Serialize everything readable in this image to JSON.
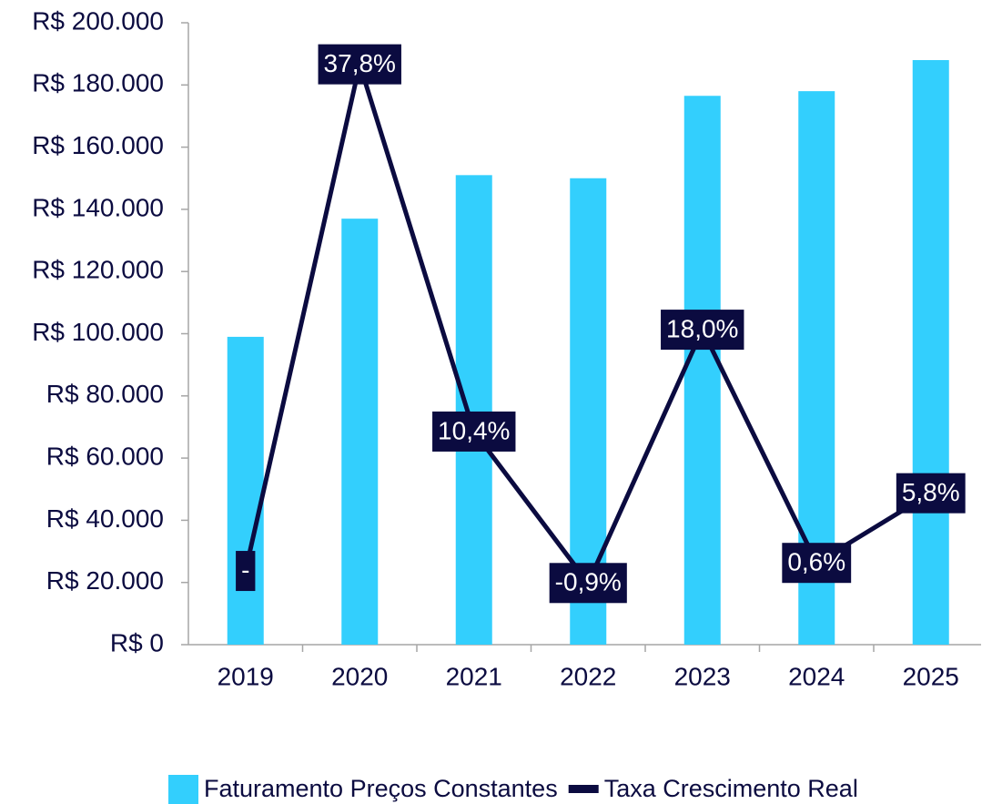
{
  "chart_data": {
    "type": "bar",
    "categories": [
      "2019",
      "2020",
      "2021",
      "2022",
      "2023",
      "2024",
      "2025"
    ],
    "series": [
      {
        "name": "Faturamento Preços Constantes",
        "type": "bar",
        "color": "#33cffd",
        "values": [
          99000,
          137000,
          151000,
          150000,
          176500,
          178000,
          188000
        ]
      },
      {
        "name": "Taxa Crescimento Real",
        "type": "line",
        "axis": "y2",
        "color": "#0b0b40",
        "values": [
          0,
          37.8,
          10.4,
          -0.9,
          18.0,
          0.6,
          5.8
        ],
        "value_labels": [
          "-",
          "37,8%",
          "10,4%",
          "-0,9%",
          "18,0%",
          "0,6%",
          "5,8%"
        ]
      }
    ],
    "ylim": [
      0,
      200000
    ],
    "yticks": [
      {
        "value": 0,
        "label": "R$ 0"
      },
      {
        "value": 20000,
        "label": "R$ 20.000"
      },
      {
        "value": 40000,
        "label": "R$ 40.000"
      },
      {
        "value": 60000,
        "label": "R$ 60.000"
      },
      {
        "value": 80000,
        "label": "R$ 80.000"
      },
      {
        "value": 100000,
        "label": "R$ 100.000"
      },
      {
        "value": 120000,
        "label": "R$ 120.000"
      },
      {
        "value": 140000,
        "label": "R$ 140.000"
      },
      {
        "value": 160000,
        "label": "R$ 160.000"
      },
      {
        "value": 180000,
        "label": "R$ 180.000"
      },
      {
        "value": 200000,
        "label": "R$ 200.000"
      }
    ],
    "y2lim": [
      -5.5,
      40.9
    ],
    "grid": false,
    "legend": "bottom"
  }
}
